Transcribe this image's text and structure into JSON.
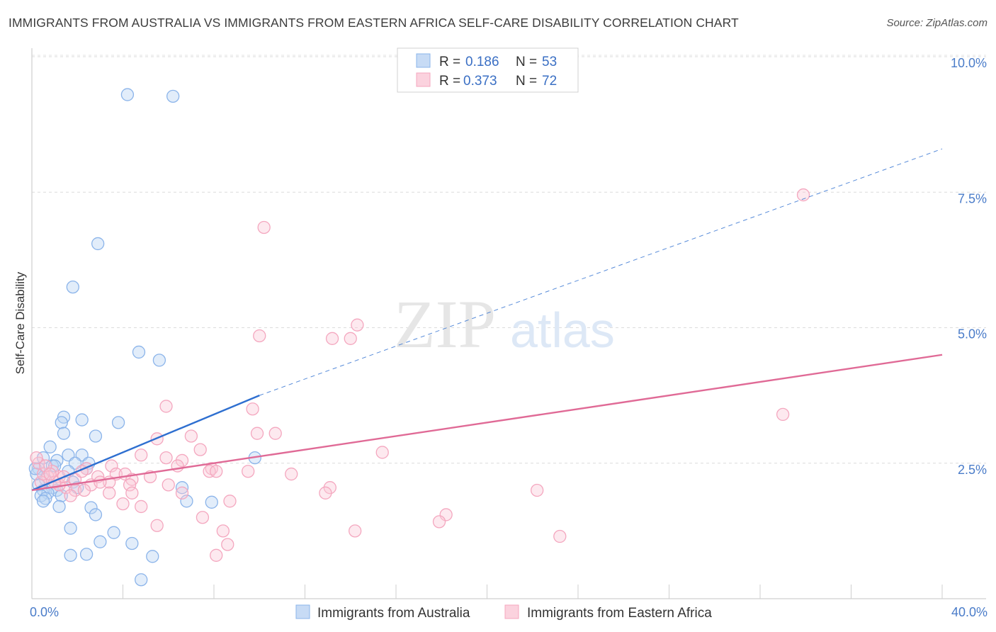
{
  "header": {
    "title": "IMMIGRANTS FROM AUSTRALIA VS IMMIGRANTS FROM EASTERN AFRICA SELF-CARE DISABILITY CORRELATION CHART",
    "source": "Source: ZipAtlas.com"
  },
  "watermark": {
    "zip": "ZIP",
    "atlas": "atlas"
  },
  "chart_data": {
    "type": "scatter",
    "title": "IMMIGRANTS FROM AUSTRALIA VS IMMIGRANTS FROM EASTERN AFRICA SELF-CARE DISABILITY CORRELATION CHART",
    "xlabel": "",
    "ylabel": "Self-Care Disability",
    "xlim": [
      0,
      40
    ],
    "ylim": [
      0,
      10.5
    ],
    "x_ticks": [
      {
        "value": 0,
        "label": "0.0%"
      },
      {
        "value": 40,
        "label": "40.0%"
      }
    ],
    "y_ticks": [
      {
        "value": 2.5,
        "label": "2.5%"
      },
      {
        "value": 5.0,
        "label": "5.0%"
      },
      {
        "value": 7.5,
        "label": "7.5%"
      },
      {
        "value": 10.0,
        "label": "10.0%"
      }
    ],
    "legend_labels": {
      "r": "R =",
      "n": "N ="
    },
    "series": [
      {
        "name": "Immigrants from Australia",
        "color": "#8bb4ea",
        "line_color": "#2e6fd0",
        "r": "0.186",
        "n": "53",
        "trend": {
          "x0": 0,
          "y0": 2.0,
          "x1": 10.0,
          "y1": 3.75,
          "dash_to_x": 40.0,
          "dash_to_y": 8.3
        },
        "points": [
          [
            4.2,
            9.3
          ],
          [
            6.2,
            9.27
          ],
          [
            2.9,
            6.55
          ],
          [
            1.8,
            5.75
          ],
          [
            4.7,
            4.55
          ],
          [
            5.6,
            4.4
          ],
          [
            1.4,
            3.35
          ],
          [
            2.2,
            3.3
          ],
          [
            1.3,
            3.25
          ],
          [
            3.8,
            3.25
          ],
          [
            1.4,
            3.05
          ],
          [
            2.8,
            3.0
          ],
          [
            0.8,
            2.8
          ],
          [
            1.6,
            2.65
          ],
          [
            2.2,
            2.65
          ],
          [
            0.5,
            2.6
          ],
          [
            1.1,
            2.55
          ],
          [
            1.9,
            2.5
          ],
          [
            2.5,
            2.5
          ],
          [
            0.9,
            2.45
          ],
          [
            1.0,
            2.45
          ],
          [
            0.3,
            2.4
          ],
          [
            2.4,
            2.4
          ],
          [
            1.6,
            2.35
          ],
          [
            0.2,
            2.3
          ],
          [
            0.6,
            2.2
          ],
          [
            1.8,
            2.15
          ],
          [
            0.3,
            2.1
          ],
          [
            0.9,
            2.05
          ],
          [
            0.5,
            2.0
          ],
          [
            1.1,
            2.0
          ],
          [
            2.0,
            2.05
          ],
          [
            0.7,
            1.95
          ],
          [
            6.6,
            2.05
          ],
          [
            0.4,
            1.9
          ],
          [
            1.3,
            1.9
          ],
          [
            0.6,
            1.85
          ],
          [
            0.5,
            1.8
          ],
          [
            6.8,
            1.8
          ],
          [
            7.9,
            1.78
          ],
          [
            1.2,
            1.7
          ],
          [
            2.6,
            1.68
          ],
          [
            2.8,
            1.55
          ],
          [
            9.8,
            2.6
          ],
          [
            1.7,
            1.3
          ],
          [
            3.6,
            1.22
          ],
          [
            3.0,
            1.05
          ],
          [
            4.4,
            1.02
          ],
          [
            1.7,
            0.8
          ],
          [
            2.4,
            0.82
          ],
          [
            5.3,
            0.78
          ],
          [
            4.8,
            0.35
          ],
          [
            0.15,
            2.4
          ]
        ]
      },
      {
        "name": "Immigrants from Eastern Africa",
        "color": "#f4a7bf",
        "line_color": "#e06a96",
        "r": "0.373",
        "n": "72",
        "trend": {
          "x0": 0,
          "y0": 2.0,
          "x1": 40.0,
          "y1": 4.5
        },
        "points": [
          [
            33.9,
            7.45
          ],
          [
            10.2,
            6.85
          ],
          [
            14.3,
            5.05
          ],
          [
            10.0,
            4.85
          ],
          [
            13.2,
            4.8
          ],
          [
            14.0,
            4.8
          ],
          [
            5.9,
            3.55
          ],
          [
            9.7,
            3.5
          ],
          [
            33.0,
            3.4
          ],
          [
            9.9,
            3.05
          ],
          [
            10.7,
            3.05
          ],
          [
            7.0,
            3.0
          ],
          [
            5.5,
            2.95
          ],
          [
            7.4,
            2.75
          ],
          [
            15.4,
            2.7
          ],
          [
            4.8,
            2.65
          ],
          [
            5.9,
            2.6
          ],
          [
            6.6,
            2.55
          ],
          [
            6.4,
            2.45
          ],
          [
            3.5,
            2.45
          ],
          [
            2.4,
            2.4
          ],
          [
            7.9,
            2.4
          ],
          [
            7.8,
            2.35
          ],
          [
            9.5,
            2.35
          ],
          [
            11.4,
            2.3
          ],
          [
            8.1,
            2.35
          ],
          [
            3.7,
            2.3
          ],
          [
            4.1,
            2.3
          ],
          [
            2.9,
            2.25
          ],
          [
            1.2,
            2.25
          ],
          [
            0.7,
            2.25
          ],
          [
            4.4,
            2.2
          ],
          [
            1.9,
            2.2
          ],
          [
            3.4,
            2.15
          ],
          [
            0.4,
            2.15
          ],
          [
            2.6,
            2.1
          ],
          [
            4.3,
            2.1
          ],
          [
            6.0,
            2.1
          ],
          [
            1.5,
            2.05
          ],
          [
            1.9,
            2.0
          ],
          [
            2.3,
            2.0
          ],
          [
            13.1,
            2.05
          ],
          [
            22.2,
            2.0
          ],
          [
            4.4,
            1.95
          ],
          [
            3.4,
            1.95
          ],
          [
            6.6,
            1.95
          ],
          [
            12.9,
            1.95
          ],
          [
            1.7,
            1.9
          ],
          [
            8.7,
            1.8
          ],
          [
            4.0,
            1.75
          ],
          [
            4.8,
            1.7
          ],
          [
            7.5,
            1.5
          ],
          [
            18.2,
            1.55
          ],
          [
            17.9,
            1.42
          ],
          [
            5.5,
            1.35
          ],
          [
            14.2,
            1.25
          ],
          [
            8.4,
            1.25
          ],
          [
            23.2,
            1.15
          ],
          [
            8.6,
            1.0
          ],
          [
            8.1,
            0.8
          ],
          [
            0.3,
            2.5
          ],
          [
            0.9,
            2.35
          ],
          [
            0.5,
            2.3
          ],
          [
            1.2,
            2.1
          ],
          [
            1.0,
            2.15
          ],
          [
            2.2,
            2.35
          ],
          [
            3.0,
            2.15
          ],
          [
            5.2,
            2.25
          ],
          [
            0.6,
            2.45
          ],
          [
            1.4,
            2.25
          ],
          [
            0.2,
            2.6
          ],
          [
            0.8,
            2.3
          ]
        ]
      }
    ]
  }
}
